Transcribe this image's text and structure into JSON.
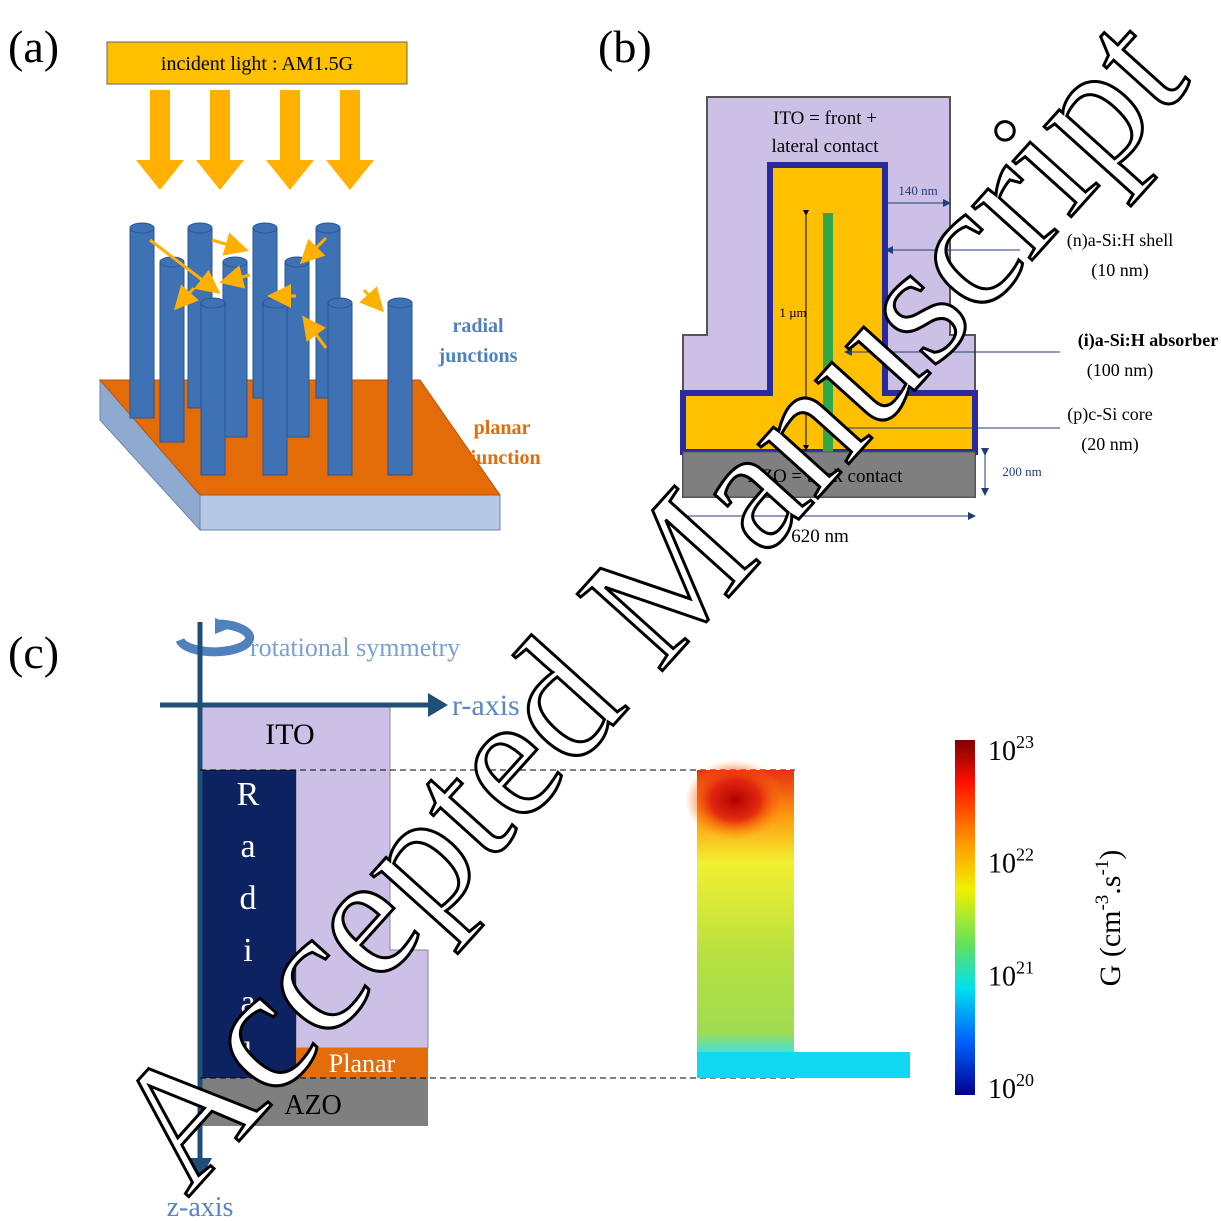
{
  "panel_a": {
    "label": "(a)",
    "light_label": "incident light : AM1.5G",
    "radial_label": [
      "radial",
      "junctions"
    ],
    "planar_label": [
      "planar",
      "junction"
    ]
  },
  "panel_b": {
    "label": "(b)",
    "ito_label": [
      "ITO = front +",
      "lateral contact"
    ],
    "shell_width": "140 nm",
    "shell_label": [
      "(n)a-Si:H shell",
      "(10 nm)"
    ],
    "length": "1 µm",
    "absorber_label": [
      "(i)a-Si:H absorber",
      "(100 nm)"
    ],
    "core_label": [
      "(p)c-Si core",
      "(20 nm)"
    ],
    "azo_label": "AZO = back contact",
    "azo_thickness": "200 nm",
    "width": "620 nm"
  },
  "panel_c": {
    "label": "(c)",
    "symmetry_label": "rotational symmetry",
    "r_axis": "r-axis",
    "z_axis": "z-axis",
    "ito": "ITO",
    "radial": [
      "R",
      "a",
      "d",
      "i",
      "a",
      "l"
    ],
    "planar": "Planar",
    "azo": "AZO",
    "colorbar": {
      "ticks": [
        {
          "base": "10",
          "exp": "23"
        },
        {
          "base": "10",
          "exp": "22"
        },
        {
          "base": "10",
          "exp": "21"
        },
        {
          "base": "10",
          "exp": "20"
        }
      ],
      "title": {
        "main": "G (cm",
        "exp1": "-3",
        "mid": ".s",
        "exp2": "-1",
        "end": ")"
      }
    }
  },
  "watermark": "Accepted Manuscript"
}
